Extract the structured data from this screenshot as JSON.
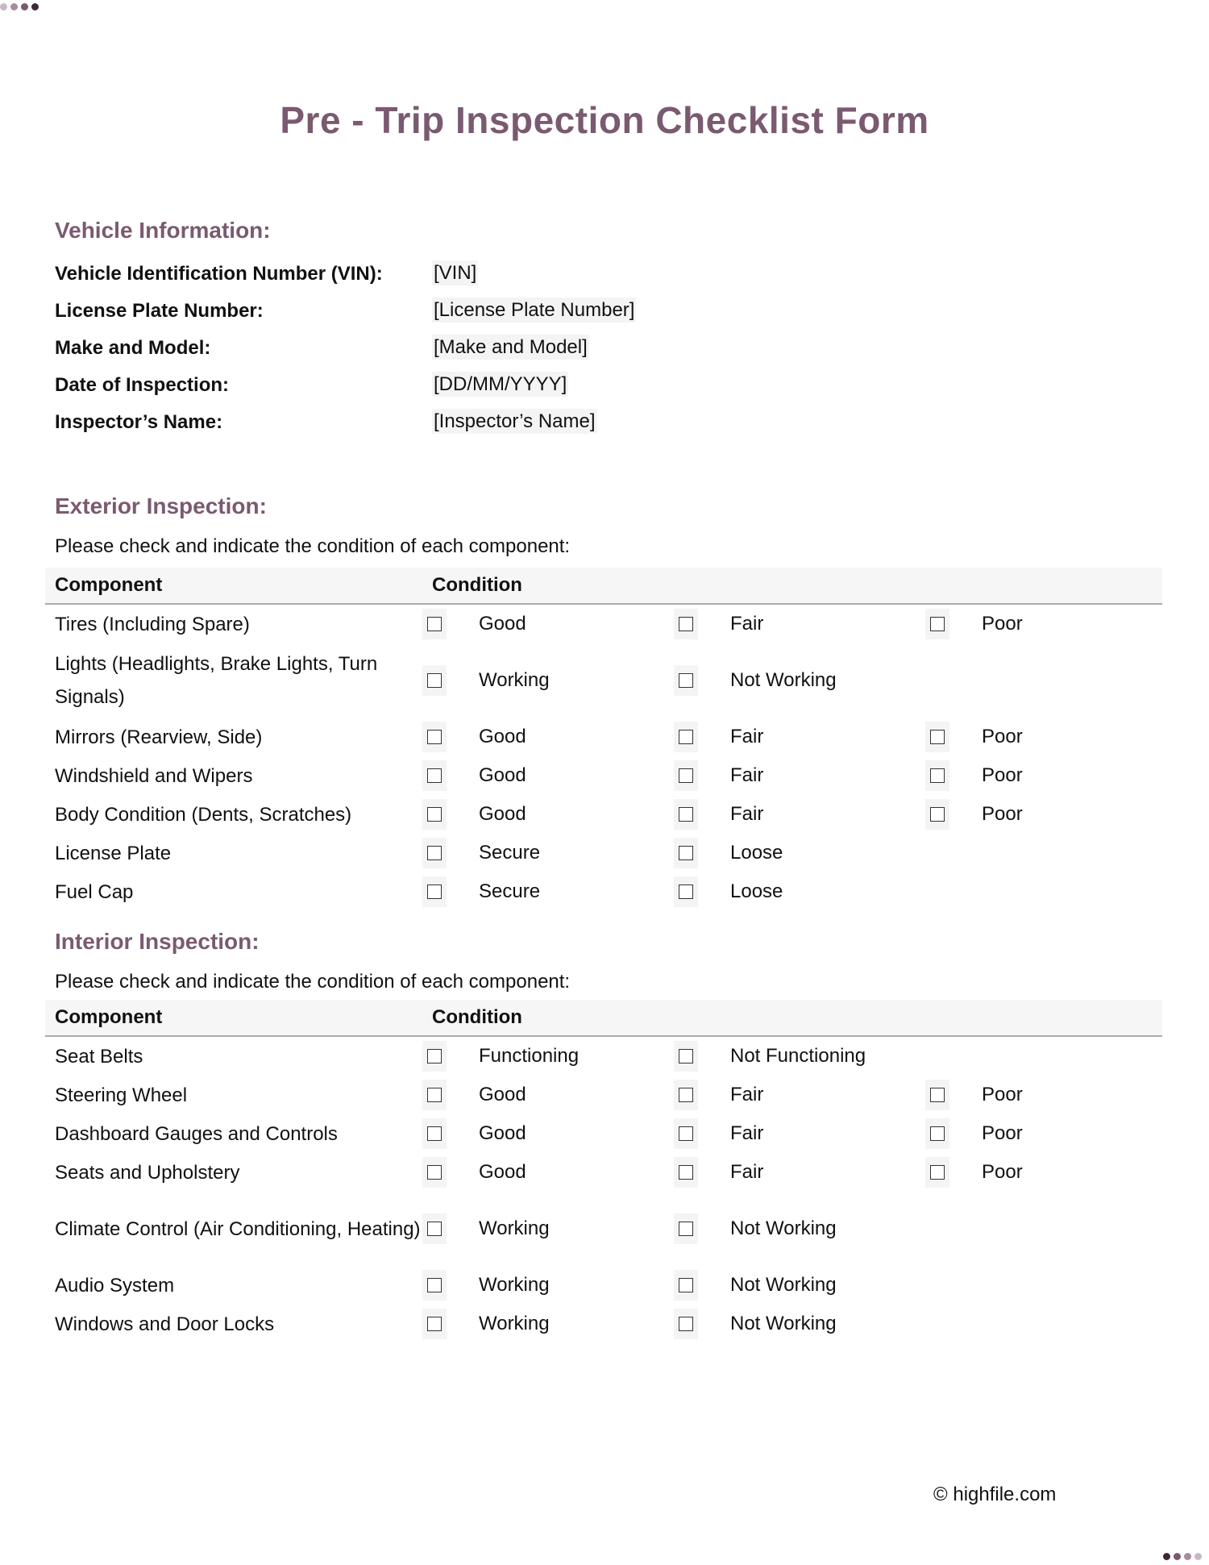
{
  "title": "Pre - Trip Inspection Checklist Form",
  "colors": {
    "accent": "#7a5a70",
    "dots": [
      "#c9b8c4",
      "#a98ba0",
      "#7a5a70",
      "#3d2a38"
    ]
  },
  "vehicle_info": {
    "heading": "Vehicle Information:",
    "fields": [
      {
        "label": "Vehicle Identification Number (VIN):",
        "value": "[VIN]"
      },
      {
        "label": "License Plate Number:",
        "value": "[License Plate Number]"
      },
      {
        "label": "Make and Model:",
        "value": "[Make and Model]"
      },
      {
        "label": "Date of Inspection:",
        "value": "[DD/MM/YYYY]"
      },
      {
        "label": "Inspector’s Name:",
        "value": "[Inspector’s Name]"
      }
    ]
  },
  "exterior": {
    "heading": "Exterior Inspection:",
    "intro": "Please check and indicate the condition of each component:",
    "columns": [
      "Component",
      "Condition"
    ],
    "rows": [
      {
        "component": "Tires (Including Spare)",
        "options": [
          "Good",
          "Fair",
          "Poor"
        ]
      },
      {
        "component": "Lights (Headlights, Brake Lights, Turn Signals)",
        "options": [
          "Working",
          "Not Working"
        ]
      },
      {
        "component": "Mirrors (Rearview, Side)",
        "options": [
          "Good",
          "Fair",
          "Poor"
        ]
      },
      {
        "component": "Windshield and Wipers",
        "options": [
          "Good",
          "Fair",
          "Poor"
        ]
      },
      {
        "component": "Body Condition (Dents, Scratches)",
        "options": [
          "Good",
          "Fair",
          "Poor"
        ]
      },
      {
        "component": "License Plate",
        "options": [
          "Secure",
          "Loose"
        ]
      },
      {
        "component": "Fuel Cap",
        "options": [
          "Secure",
          "Loose"
        ]
      }
    ]
  },
  "interior": {
    "heading": "Interior Inspection:",
    "intro": "Please check and indicate the condition of each component:",
    "columns": [
      "Component",
      "Condition"
    ],
    "rows": [
      {
        "component": "Seat Belts",
        "options": [
          "Functioning",
          "Not Functioning"
        ]
      },
      {
        "component": "Steering Wheel",
        "options": [
          "Good",
          "Fair",
          "Poor"
        ]
      },
      {
        "component": "Dashboard Gauges and Controls",
        "options": [
          "Good",
          "Fair",
          "Poor"
        ]
      },
      {
        "component": "Seats and Upholstery",
        "options": [
          "Good",
          "Fair",
          "Poor"
        ]
      },
      {
        "component": "Climate Control (Air Conditioning, Heating)",
        "options": [
          "Working",
          "Not Working"
        ]
      },
      {
        "component": "Audio System",
        "options": [
          "Working",
          "Not Working"
        ]
      },
      {
        "component": "Windows and Door Locks",
        "options": [
          "Working",
          "Not Working"
        ]
      }
    ]
  },
  "footer": "© highfile.com"
}
